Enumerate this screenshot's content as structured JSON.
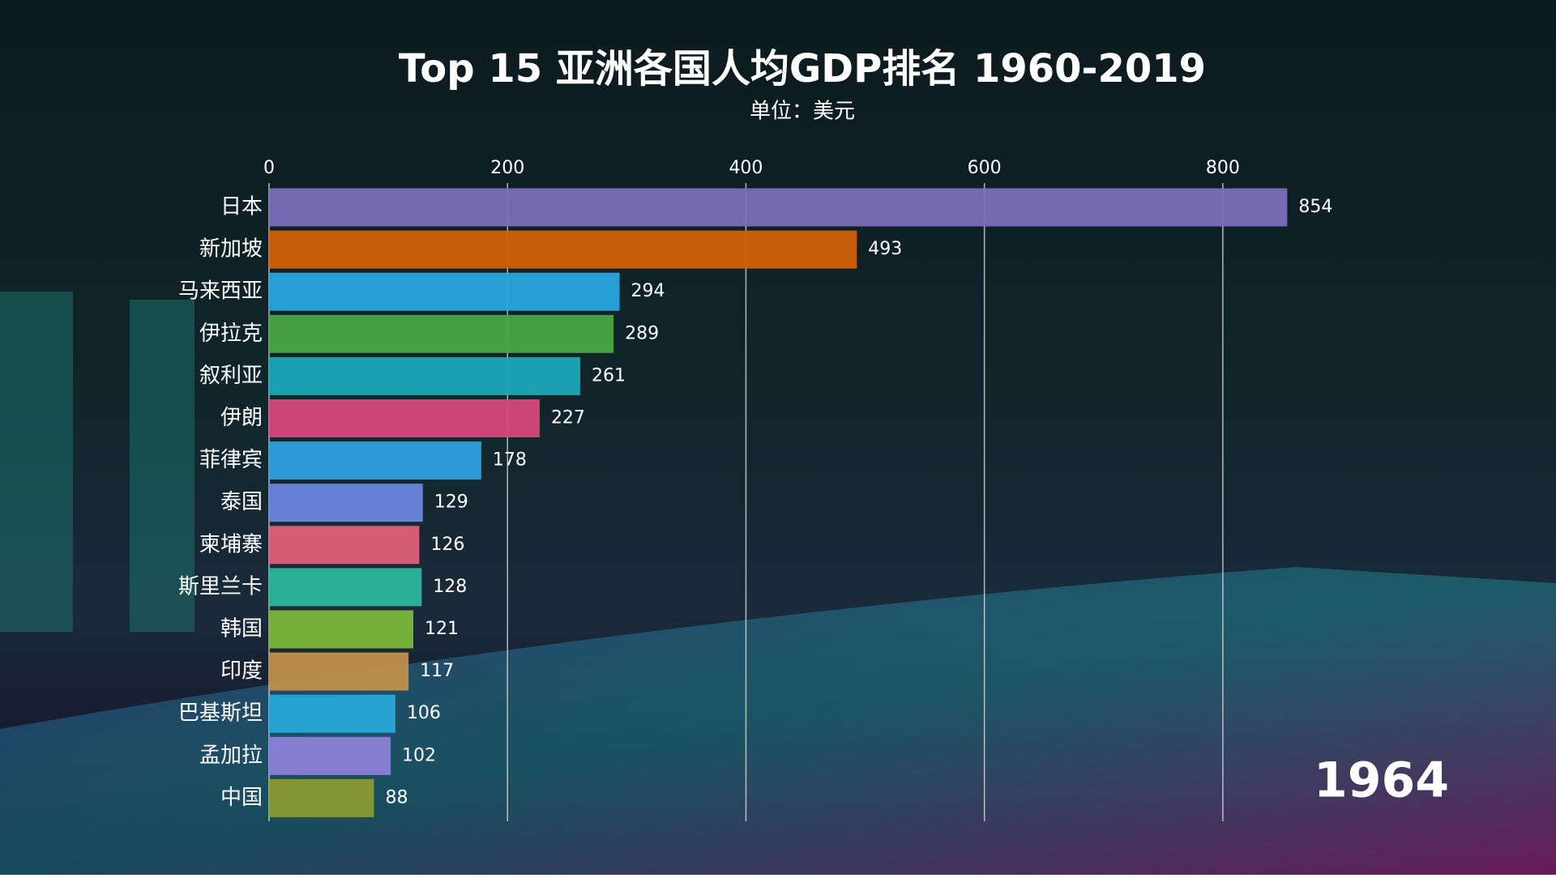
{
  "chart_data": {
    "type": "barh",
    "title": "Top 15 亚洲各国人均GDP排名 1960-2019",
    "subtitle": "单位：美元",
    "annotation": "1964",
    "categories": [
      "日本",
      "新加坡",
      "马来西亚",
      "伊拉克",
      "叙利亚",
      "伊朗",
      "菲律宾",
      "泰国",
      "柬埔寨",
      "斯里兰卡",
      "韩国",
      "印度",
      "巴基斯坦",
      "孟加拉",
      "中国"
    ],
    "values": [
      854,
      493,
      294,
      289,
      261,
      227,
      178,
      129,
      126,
      128,
      121,
      117,
      106,
      102,
      88
    ],
    "colors": [
      "#7b6fb8",
      "#d2600a",
      "#29a6dd",
      "#4aa844",
      "#1aa6b8",
      "#d6487a",
      "#2f9fe0",
      "#6b86e0",
      "#e0607a",
      "#2bb89a",
      "#7ab83a",
      "#c0904a",
      "#28a8d8",
      "#8a7fd8",
      "#8a9a30"
    ],
    "xlim": [
      0,
      900
    ],
    "xticks": [
      0,
      200,
      400,
      600,
      800
    ],
    "grid": true
  }
}
